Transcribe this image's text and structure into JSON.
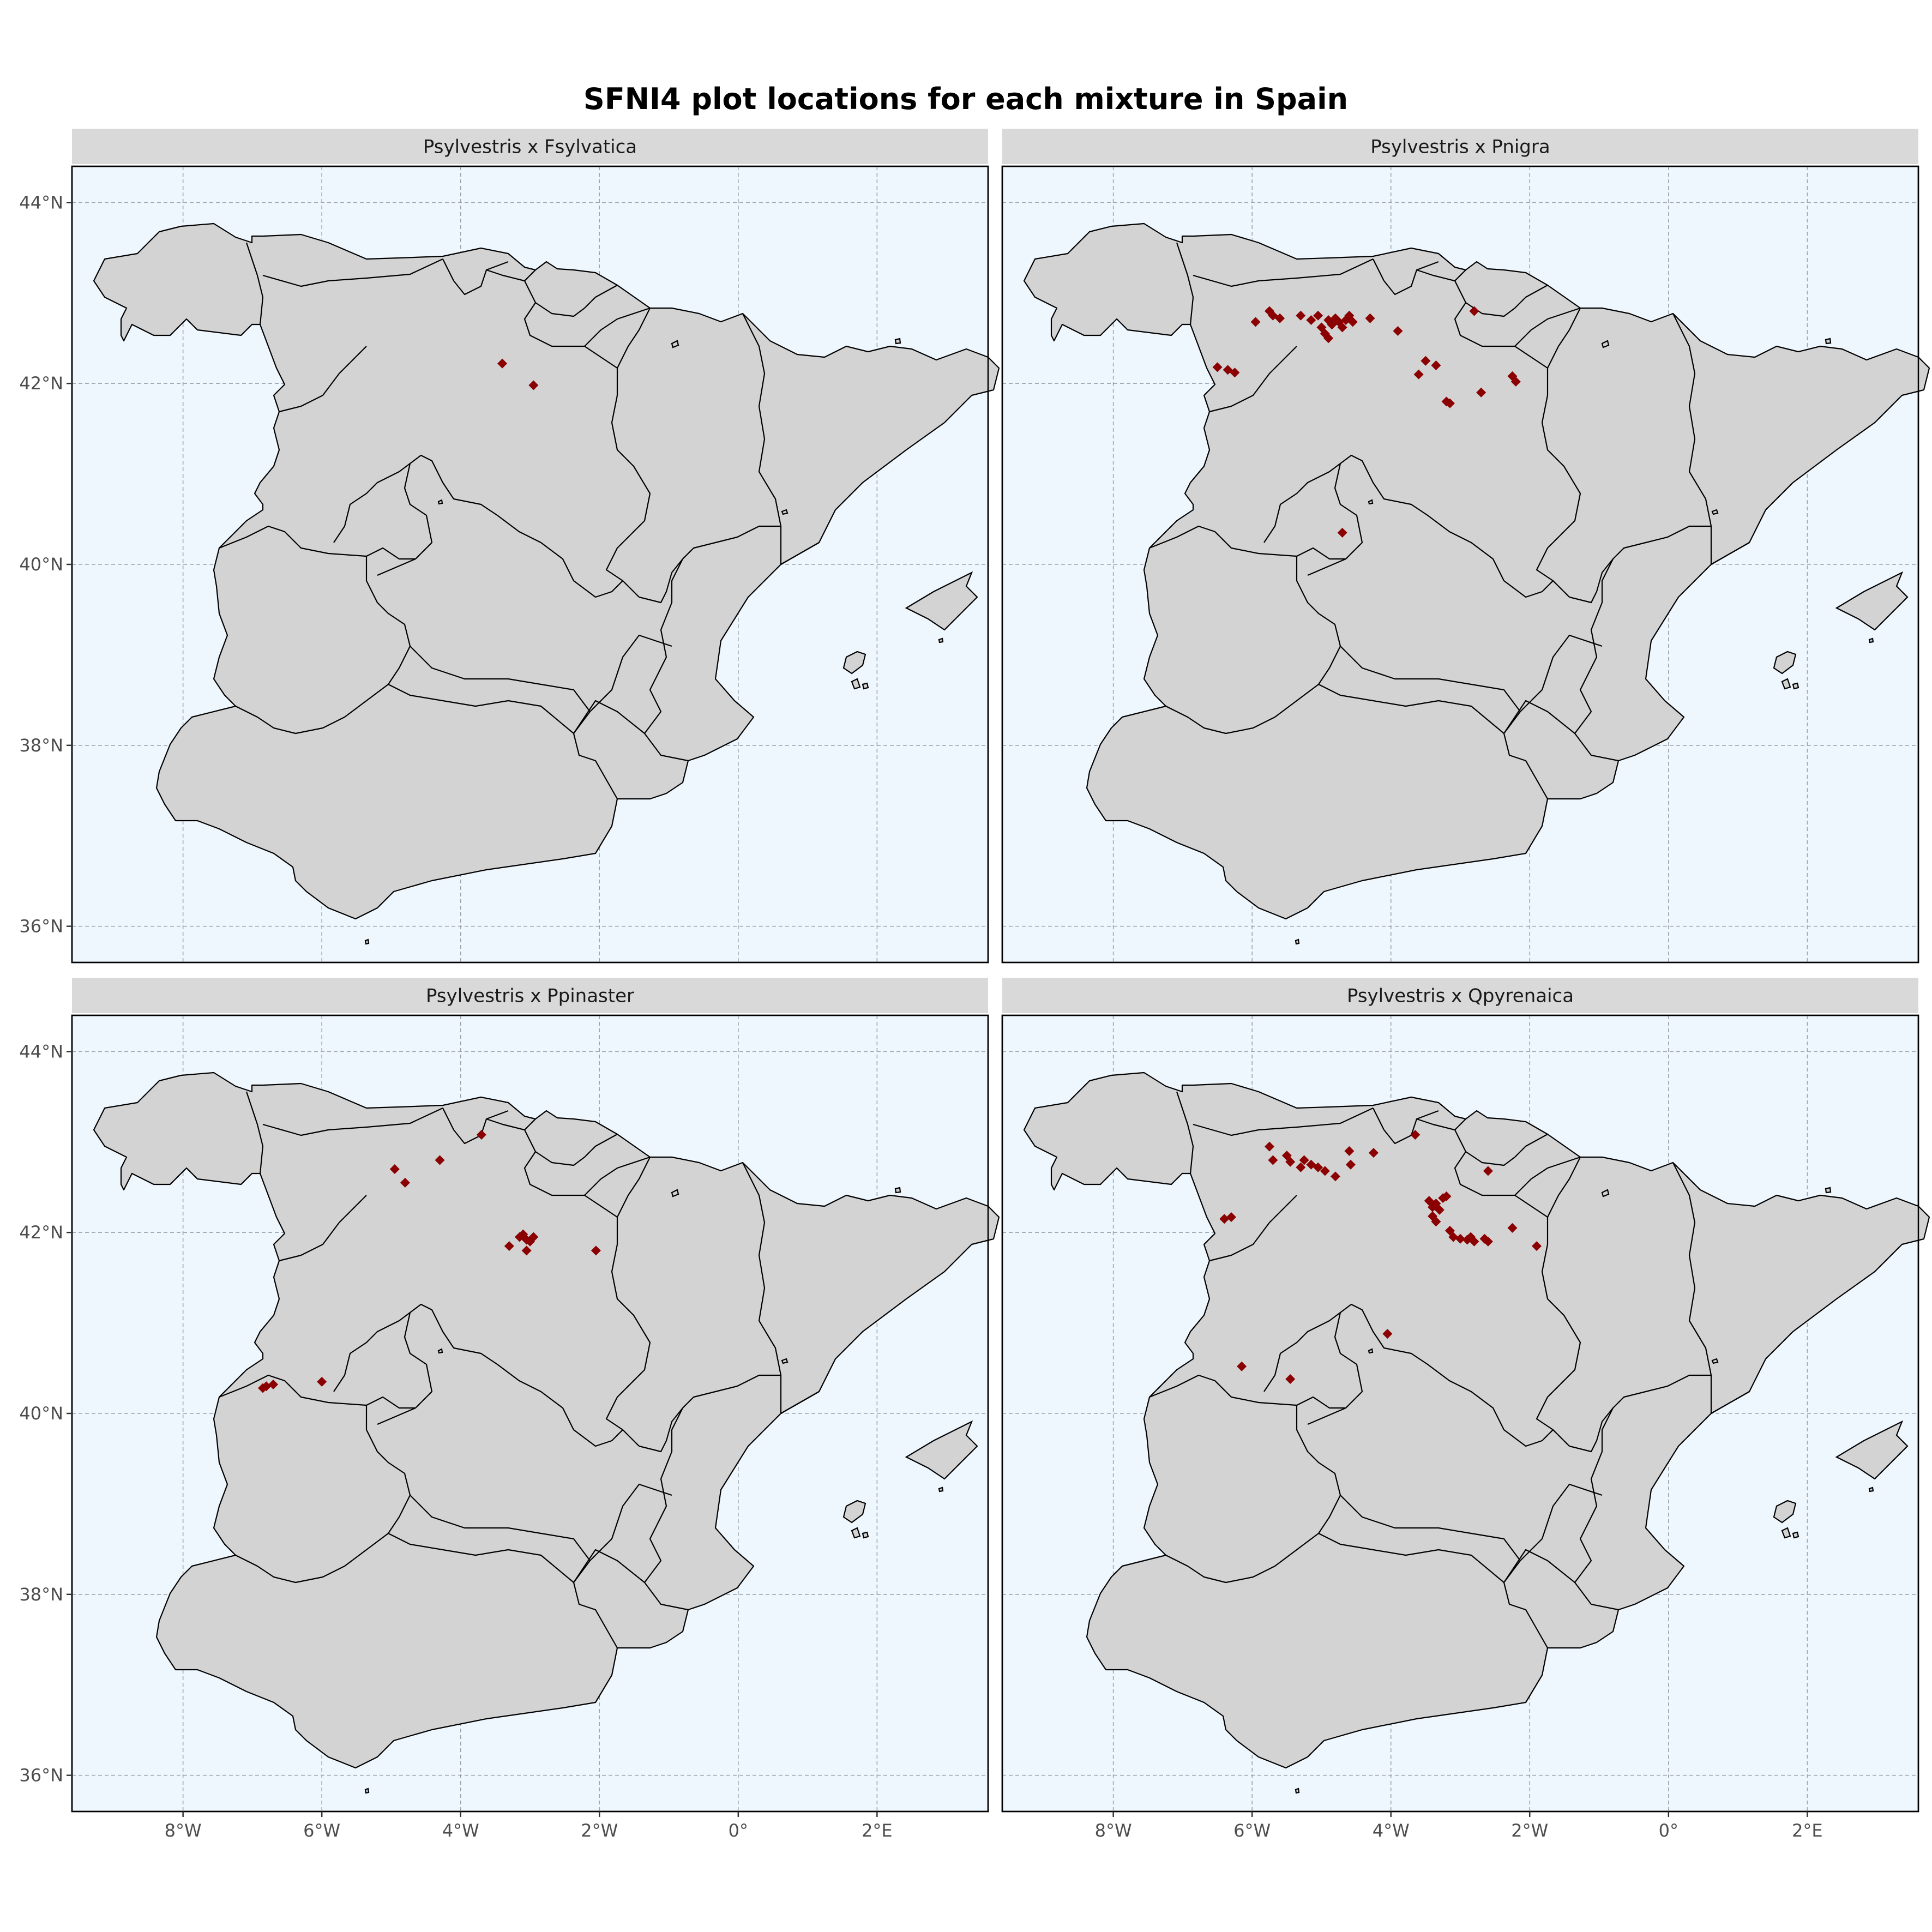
{
  "title": "SFNI4 plot locations for each mixture in Spain",
  "colors": {
    "background": "#eef6fe",
    "land": "#d3d3d3",
    "points": "#8b0000",
    "strip": "#d9d9d9"
  },
  "axes": {
    "lon_ticks": [
      -8,
      -6,
      -4,
      -2,
      0,
      2
    ],
    "lon_labels": [
      "8°W",
      "6°W",
      "4°W",
      "2°W",
      "0°",
      "2°E"
    ],
    "lat_ticks": [
      44,
      42,
      40,
      38,
      36
    ],
    "lat_labels": [
      "44°N",
      "42°N",
      "40°N",
      "38°N",
      "36°N"
    ],
    "lon_range": [
      -9.6,
      3.6
    ],
    "lat_range": [
      35.6,
      44.4
    ]
  },
  "chart_data": [
    {
      "type": "scatter",
      "facet": "Psylvestris x Fsylvatica",
      "points": [
        [
          -3.4,
          42.22
        ],
        [
          -2.95,
          41.98
        ]
      ]
    },
    {
      "type": "scatter",
      "facet": "Psylvestris x Pnigra",
      "points": [
        [
          -6.5,
          42.18
        ],
        [
          -6.35,
          42.15
        ],
        [
          -6.25,
          42.12
        ],
        [
          -5.95,
          42.68
        ],
        [
          -5.75,
          42.8
        ],
        [
          -5.7,
          42.75
        ],
        [
          -5.6,
          42.72
        ],
        [
          -5.3,
          42.75
        ],
        [
          -5.15,
          42.7
        ],
        [
          -5.05,
          42.75
        ],
        [
          -5.0,
          42.62
        ],
        [
          -4.95,
          42.55
        ],
        [
          -4.9,
          42.7
        ],
        [
          -4.85,
          42.65
        ],
        [
          -4.8,
          42.72
        ],
        [
          -4.75,
          42.68
        ],
        [
          -4.7,
          42.62
        ],
        [
          -4.65,
          42.7
        ],
        [
          -4.6,
          42.75
        ],
        [
          -4.55,
          42.68
        ],
        [
          -4.9,
          42.5
        ],
        [
          -4.3,
          42.72
        ],
        [
          -3.9,
          42.58
        ],
        [
          -3.5,
          42.25
        ],
        [
          -3.35,
          42.2
        ],
        [
          -3.6,
          42.1
        ],
        [
          -3.2,
          41.8
        ],
        [
          -3.15,
          41.78
        ],
        [
          -2.8,
          42.8
        ],
        [
          -2.7,
          41.9
        ],
        [
          -2.25,
          42.08
        ],
        [
          -2.2,
          42.02
        ],
        [
          -4.7,
          40.35
        ]
      ]
    },
    {
      "type": "scatter",
      "facet": "Psylvestris x Ppinaster",
      "points": [
        [
          -4.95,
          42.7
        ],
        [
          -4.8,
          42.55
        ],
        [
          -4.3,
          42.8
        ],
        [
          -3.7,
          43.08
        ],
        [
          -3.3,
          41.85
        ],
        [
          -3.15,
          41.95
        ],
        [
          -3.1,
          41.98
        ],
        [
          -3.05,
          41.92
        ],
        [
          -3.0,
          41.9
        ],
        [
          -2.95,
          41.95
        ],
        [
          -3.05,
          41.8
        ],
        [
          -2.05,
          41.8
        ],
        [
          -6.85,
          40.28
        ],
        [
          -6.8,
          40.3
        ],
        [
          -6.7,
          40.32
        ],
        [
          -6.0,
          40.35
        ]
      ]
    },
    {
      "type": "scatter",
      "facet": "Psylvestris x Qpyrenaica",
      "points": [
        [
          -5.75,
          42.95
        ],
        [
          -5.7,
          42.8
        ],
        [
          -5.5,
          42.85
        ],
        [
          -5.45,
          42.78
        ],
        [
          -5.3,
          42.72
        ],
        [
          -5.25,
          42.8
        ],
        [
          -5.15,
          42.75
        ],
        [
          -5.05,
          42.72
        ],
        [
          -4.95,
          42.68
        ],
        [
          -4.8,
          42.62
        ],
        [
          -4.6,
          42.9
        ],
        [
          -4.58,
          42.75
        ],
        [
          -4.25,
          42.88
        ],
        [
          -3.65,
          43.08
        ],
        [
          -6.4,
          42.15
        ],
        [
          -6.3,
          42.17
        ],
        [
          -3.45,
          42.35
        ],
        [
          -3.4,
          42.28
        ],
        [
          -3.35,
          42.32
        ],
        [
          -3.3,
          42.25
        ],
        [
          -3.25,
          42.38
        ],
        [
          -3.2,
          42.4
        ],
        [
          -3.4,
          42.18
        ],
        [
          -3.35,
          42.12
        ],
        [
          -3.15,
          42.02
        ],
        [
          -3.1,
          41.95
        ],
        [
          -3.0,
          41.93
        ],
        [
          -2.9,
          41.92
        ],
        [
          -2.85,
          41.95
        ],
        [
          -2.8,
          41.9
        ],
        [
          -2.65,
          41.93
        ],
        [
          -2.6,
          41.9
        ],
        [
          -2.6,
          42.68
        ],
        [
          -2.25,
          42.05
        ],
        [
          -1.9,
          41.85
        ],
        [
          -4.05,
          40.88
        ],
        [
          -6.15,
          40.52
        ],
        [
          -5.45,
          40.38
        ]
      ]
    }
  ],
  "facets": [
    {
      "label": "Psylvestris x Fsylvatica"
    },
    {
      "label": "Psylvestris x Pnigra"
    },
    {
      "label": "Psylvestris x Ppinaster"
    },
    {
      "label": "Psylvestris x Qpyrenaica"
    }
  ]
}
